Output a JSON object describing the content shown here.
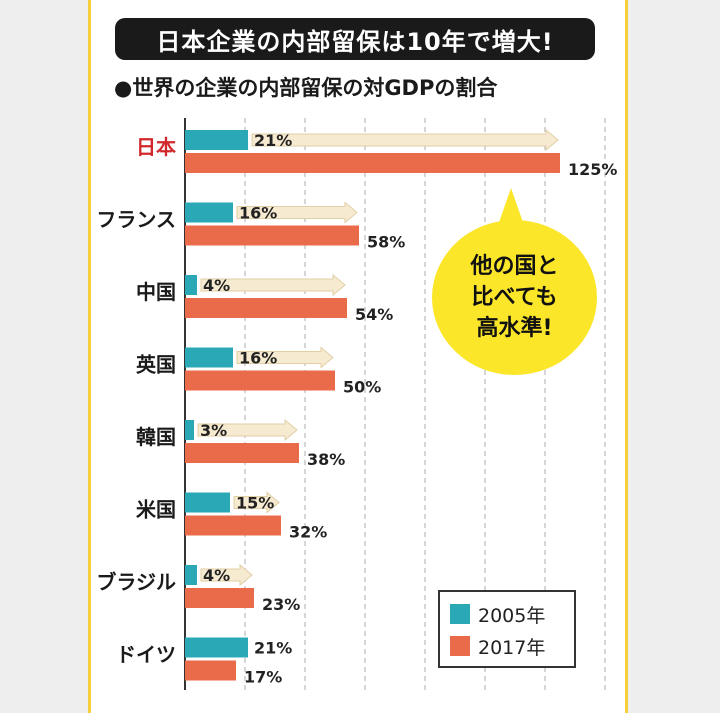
{
  "banner": "日本企業の内部留保は10年で増大!",
  "subtitle": "●世界の企業の内部留保の対GDPの割合",
  "callout": [
    "他の国と",
    "比べても",
    "高水準!"
  ],
  "colors": {
    "series_2005": "#2aa8b5",
    "series_2017": "#ea6b4a",
    "arrow": "#f6ead0",
    "highlight_label": "#d0282c",
    "grid": "#c8c8c8"
  },
  "chart_data": {
    "type": "bar",
    "orientation": "horizontal",
    "title": "日本企業の内部留保は10年で増大!",
    "subtitle": "●世界の企業の内部留保の対GDPの割合",
    "categories": [
      "日本",
      "フランス",
      "中国",
      "英国",
      "韓国",
      "米国",
      "ブラジル",
      "ドイツ"
    ],
    "highlight_category": "日本",
    "series": [
      {
        "name": "2005年",
        "values": [
          21,
          16,
          4,
          16,
          3,
          15,
          4,
          21
        ],
        "labels": [
          "21%",
          "16%",
          "4%",
          "16%",
          "3%",
          "15%",
          "4%",
          "21%"
        ]
      },
      {
        "name": "2017年",
        "values": [
          125,
          58,
          54,
          50,
          38,
          32,
          23,
          17
        ],
        "labels": [
          "125%",
          "58%",
          "54%",
          "50%",
          "38%",
          "32%",
          "23%",
          "17%"
        ]
      }
    ],
    "xlim": [
      0,
      140
    ],
    "grid": true,
    "legend_position": "bottom-right"
  }
}
